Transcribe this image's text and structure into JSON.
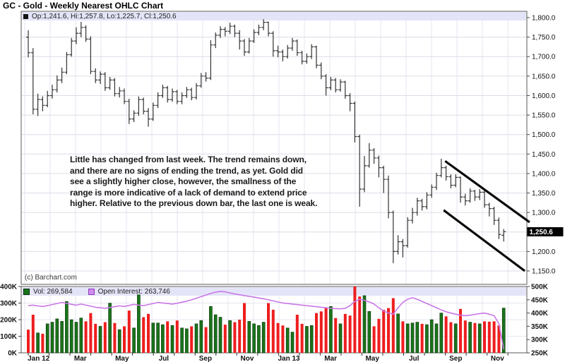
{
  "title": "GC - Gold - Weekly Nearest OHLC Chart",
  "main_panel": {
    "legend_text": "Op:1,241.6, Hi:1,257.8, Lo:1,225.7, Cl:1,250.6",
    "annotation": "Little has changed from last week.  The trend remains down,\nand there are no signs of ending the trend, as yet.  Gold did\nsee a slightly higher close, however, the smallness of the\nrange is more indicative of a lack of demand to extend price\nhigher.  Relative to the previous down bar, the last one is weak.",
    "watermark": "(c) Barchart.com",
    "last_price_label": "1,250.6"
  },
  "volume_panel": {
    "vol_legend": "Vol: 269,584",
    "oi_legend": "Open Interest: 263,746"
  },
  "chart_data": {
    "type": "ohlc+volume",
    "title": "GC - Gold - Weekly Nearest OHLC Chart",
    "price_axis": {
      "min": 1150,
      "max": 1800,
      "step": 50,
      "tick_labels": [
        "1,800.0",
        "1,750.0",
        "1,700.0",
        "1,650.0",
        "1,600.0",
        "1,550.0",
        "1,500.0",
        "1,450.0",
        "1,400.0",
        "1,350.0",
        "1,300.0",
        "1,250.0",
        "1,200.0",
        "1,150.0"
      ],
      "last_price_value": 1250.6,
      "last_price_label": "1,250.6"
    },
    "volume_axis_left": {
      "labels": [
        "400K",
        "300K",
        "200K",
        "100K",
        "0K"
      ],
      "max": 400
    },
    "oi_axis_right": {
      "labels": [
        "500K",
        "450K",
        "400K",
        "350K",
        "300K",
        "250K"
      ],
      "min": 250,
      "max": 500
    },
    "x_labels": [
      "Jan 12",
      "Mar",
      "May",
      "Jul",
      "Sep",
      "Nov",
      "Jan 13",
      "Mar",
      "May",
      "Jul",
      "Sep",
      "Nov"
    ],
    "bars": [
      [
        1750,
        1768,
        1698,
        1710
      ],
      [
        1710,
        1722,
        1552,
        1565
      ],
      [
        1565,
        1605,
        1548,
        1590
      ],
      [
        1590,
        1598,
        1560,
        1575
      ],
      [
        1575,
        1612,
        1570,
        1600
      ],
      [
        1600,
        1628,
        1592,
        1615
      ],
      [
        1615,
        1652,
        1608,
        1640
      ],
      [
        1640,
        1672,
        1632,
        1660
      ],
      [
        1660,
        1712,
        1655,
        1705
      ],
      [
        1705,
        1748,
        1700,
        1740
      ],
      [
        1740,
        1775,
        1732,
        1760
      ],
      [
        1760,
        1789,
        1750,
        1775
      ],
      [
        1775,
        1780,
        1738,
        1745
      ],
      [
        1745,
        1752,
        1655,
        1662
      ],
      [
        1662,
        1670,
        1632,
        1640
      ],
      [
        1640,
        1662,
        1630,
        1655
      ],
      [
        1655,
        1660,
        1612,
        1620
      ],
      [
        1620,
        1648,
        1615,
        1640
      ],
      [
        1640,
        1645,
        1598,
        1605
      ],
      [
        1605,
        1622,
        1595,
        1612
      ],
      [
        1612,
        1618,
        1578,
        1585
      ],
      [
        1585,
        1592,
        1527,
        1540
      ],
      [
        1540,
        1562,
        1532,
        1555
      ],
      [
        1555,
        1598,
        1548,
        1590
      ],
      [
        1590,
        1595,
        1552,
        1560
      ],
      [
        1560,
        1568,
        1520,
        1540
      ],
      [
        1540,
        1582,
        1535,
        1575
      ],
      [
        1575,
        1608,
        1568,
        1600
      ],
      [
        1600,
        1628,
        1594,
        1620
      ],
      [
        1620,
        1625,
        1582,
        1590
      ],
      [
        1590,
        1618,
        1584,
        1610
      ],
      [
        1610,
        1615,
        1578,
        1585
      ],
      [
        1585,
        1608,
        1578,
        1600
      ],
      [
        1600,
        1622,
        1594,
        1615
      ],
      [
        1615,
        1620,
        1588,
        1595
      ],
      [
        1595,
        1632,
        1590,
        1625
      ],
      [
        1625,
        1658,
        1620,
        1650
      ],
      [
        1650,
        1660,
        1636,
        1645
      ],
      [
        1645,
        1742,
        1640,
        1730
      ],
      [
        1730,
        1762,
        1722,
        1755
      ],
      [
        1755,
        1778,
        1748,
        1770
      ],
      [
        1770,
        1776,
        1752,
        1765
      ],
      [
        1765,
        1787,
        1758,
        1778
      ],
      [
        1778,
        1782,
        1750,
        1760
      ],
      [
        1760,
        1768,
        1718,
        1740
      ],
      [
        1740,
        1745,
        1702,
        1712
      ],
      [
        1712,
        1748,
        1708,
        1740
      ],
      [
        1740,
        1770,
        1735,
        1762
      ],
      [
        1762,
        1782,
        1755,
        1775
      ],
      [
        1775,
        1796,
        1768,
        1788
      ],
      [
        1788,
        1790,
        1752,
        1760
      ],
      [
        1760,
        1765,
        1700,
        1715
      ],
      [
        1715,
        1728,
        1698,
        1712
      ],
      [
        1712,
        1718,
        1688,
        1700
      ],
      [
        1700,
        1730,
        1695,
        1722
      ],
      [
        1722,
        1748,
        1715,
        1740
      ],
      [
        1740,
        1744,
        1702,
        1710
      ],
      [
        1710,
        1715,
        1680,
        1688
      ],
      [
        1688,
        1708,
        1682,
        1700
      ],
      [
        1700,
        1732,
        1694,
        1725
      ],
      [
        1725,
        1728,
        1670,
        1678
      ],
      [
        1678,
        1685,
        1642,
        1650
      ],
      [
        1650,
        1655,
        1600,
        1620
      ],
      [
        1620,
        1648,
        1614,
        1640
      ],
      [
        1640,
        1645,
        1608,
        1615
      ],
      [
        1615,
        1642,
        1610,
        1635
      ],
      [
        1635,
        1638,
        1592,
        1600
      ],
      [
        1600,
        1606,
        1560,
        1580
      ],
      [
        1580,
        1585,
        1480,
        1495
      ],
      [
        1495,
        1500,
        1315,
        1360
      ],
      [
        1360,
        1445,
        1352,
        1420
      ],
      [
        1420,
        1478,
        1415,
        1460
      ],
      [
        1460,
        1465,
        1425,
        1440
      ],
      [
        1440,
        1446,
        1390,
        1415
      ],
      [
        1415,
        1420,
        1350,
        1385
      ],
      [
        1385,
        1395,
        1285,
        1300
      ],
      [
        1300,
        1305,
        1170,
        1200
      ],
      [
        1200,
        1242,
        1192,
        1225
      ],
      [
        1225,
        1232,
        1185,
        1215
      ],
      [
        1215,
        1288,
        1210,
        1280
      ],
      [
        1280,
        1312,
        1272,
        1300
      ],
      [
        1300,
        1338,
        1292,
        1330
      ],
      [
        1330,
        1335,
        1305,
        1315
      ],
      [
        1315,
        1352,
        1308,
        1345
      ],
      [
        1345,
        1372,
        1338,
        1365
      ],
      [
        1365,
        1402,
        1358,
        1395
      ],
      [
        1395,
        1438,
        1390,
        1415
      ],
      [
        1415,
        1420,
        1382,
        1392
      ],
      [
        1392,
        1398,
        1362,
        1370
      ],
      [
        1370,
        1398,
        1365,
        1390
      ],
      [
        1390,
        1392,
        1325,
        1340
      ],
      [
        1340,
        1348,
        1318,
        1330
      ],
      [
        1330,
        1362,
        1325,
        1355
      ],
      [
        1355,
        1358,
        1330,
        1340
      ],
      [
        1340,
        1360,
        1332,
        1352
      ],
      [
        1352,
        1356,
        1312,
        1320
      ],
      [
        1320,
        1325,
        1290,
        1310
      ],
      [
        1310,
        1315,
        1268,
        1280
      ],
      [
        1280,
        1287,
        1232,
        1244
      ],
      [
        1241.6,
        1257.8,
        1225.7,
        1250.6
      ]
    ],
    "volume": [
      140,
      230,
      120,
      115,
      175,
      185,
      205,
      190,
      310,
      200,
      185,
      210,
      190,
      240,
      175,
      160,
      185,
      300,
      180,
      140,
      160,
      255,
      150,
      350,
      215,
      235,
      180,
      180,
      170,
      190,
      165,
      195,
      150,
      145,
      160,
      175,
      195,
      155,
      280,
      230,
      215,
      170,
      195,
      185,
      200,
      300,
      190,
      175,
      165,
      185,
      300,
      260,
      180,
      165,
      150,
      125,
      230,
      175,
      160,
      165,
      240,
      250,
      270,
      280,
      210,
      175,
      235,
      225,
      400,
      340,
      345,
      250,
      160,
      205,
      260,
      270,
      330,
      235,
      190,
      175,
      180,
      185,
      175,
      170,
      200,
      175,
      240,
      220,
      185,
      175,
      265,
      195,
      185,
      180,
      175,
      190,
      188,
      190,
      165,
      270
    ],
    "open_interest": [
      428,
      430,
      427,
      425,
      428,
      432,
      436,
      440,
      437,
      433,
      430,
      434,
      430,
      426,
      422,
      420,
      418,
      421,
      424,
      427,
      425,
      429,
      433,
      430,
      428,
      432,
      436,
      440,
      438,
      436,
      434,
      437,
      441,
      445,
      450,
      456,
      462,
      468,
      474,
      479,
      482,
      480,
      476,
      472,
      469,
      466,
      463,
      460,
      457,
      454,
      450,
      446,
      442,
      438,
      436,
      434,
      432,
      430,
      428,
      426,
      424,
      422,
      420,
      418,
      417,
      416,
      418,
      428,
      444,
      452,
      448,
      442,
      434,
      420,
      408,
      400,
      396,
      420,
      440,
      452,
      458,
      452,
      444,
      436,
      428,
      420,
      412,
      405,
      400,
      396,
      392,
      390,
      392,
      395,
      398,
      400,
      396,
      390,
      360,
      264
    ],
    "channel_lines": [
      {
        "week1": 86.8,
        "price1": 1432,
        "week2": 104.4,
        "price2": 1275
      },
      {
        "week1": 86.5,
        "price1": 1306,
        "week2": 103.4,
        "price2": 1150
      }
    ],
    "colors": {
      "bar": "#333333",
      "volume_up": "#1a741a",
      "volume_down": "#ee1e1e",
      "oi_line": "#c977e6",
      "legend_strip": "#e4e4f8",
      "grid": "#dcdce8",
      "grid_light": "#e6e6f0",
      "last_price_bg": "#000000",
      "last_price_fg": "#ffffff"
    }
  }
}
